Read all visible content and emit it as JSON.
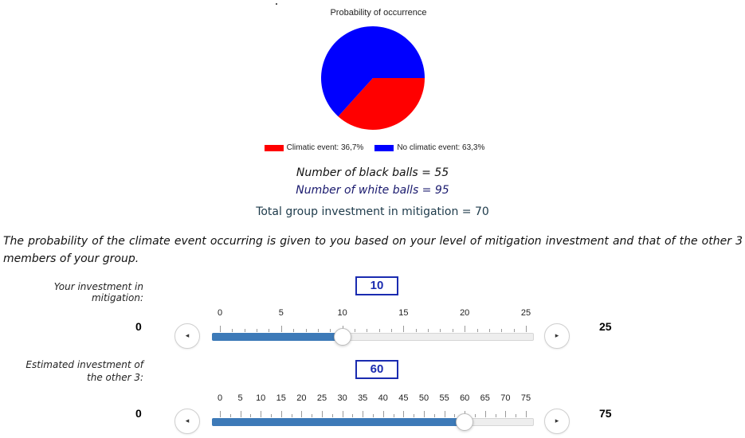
{
  "chart": {
    "title": "Probability of occurrence",
    "chart_data": {
      "type": "pie",
      "title": "Probability of occurrence",
      "slices": [
        {
          "label": "Climatic event: 36,7%",
          "value": 36.7,
          "color": "#ff0000"
        },
        {
          "label": "No climatic event: 63,3%",
          "value": 63.3,
          "color": "#0000ff"
        }
      ]
    }
  },
  "stats": {
    "black_balls": "Number of black balls = 55",
    "white_balls": "Number of white balls = 95",
    "total_investment": "Total group investment in mitigation = 70"
  },
  "description": "The probability of the climate event occurring is given to you based on your level of mitigation investment and that of the other 3 members of your group.",
  "slider1": {
    "label": "Your investment in mitigation:",
    "value_display": "10",
    "value": 10,
    "min": 0,
    "max": 25,
    "min_label": "0",
    "max_label": "25",
    "tick_labels": [
      "0",
      "5",
      "10",
      "15",
      "20",
      "25"
    ],
    "minor_step": 1,
    "prev_icon": "◂",
    "next_icon": "▸"
  },
  "slider2": {
    "label": "Estimated investment of the other 3:",
    "value_display": "60",
    "value": 60,
    "min": 0,
    "max": 75,
    "min_label": "0",
    "max_label": "75",
    "tick_labels": [
      "0",
      "5",
      "10",
      "15",
      "20",
      "25",
      "30",
      "35",
      "40",
      "45",
      "50",
      "55",
      "60",
      "65",
      "70",
      "75"
    ],
    "minor_step": 2.5,
    "prev_icon": "◂",
    "next_icon": "▸"
  },
  "colors": {
    "fill": "#3d7ab8",
    "value_box": "#1a2bb0"
  }
}
